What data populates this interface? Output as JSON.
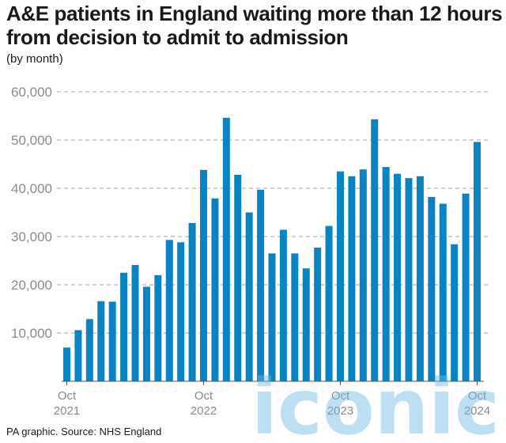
{
  "title": "A&E patients in England waiting more than 12 hours from decision to admit to admission",
  "subtitle": "(by month)",
  "source": "PA graphic. Source: NHS England",
  "watermark": "iconic",
  "colors": {
    "bar": "#0a83c2",
    "grid": "#a0a0a0",
    "axis": "#555555",
    "tick_text": "#8a8a8a"
  },
  "chart_data": {
    "type": "bar",
    "title": "A&E patients in England waiting more than 12 hours from decision to admit to admission",
    "subtitle": "(by month)",
    "xlabel": "",
    "ylabel": "",
    "ylim": [
      0,
      60000
    ],
    "yticks": [
      10000,
      20000,
      30000,
      40000,
      50000,
      60000
    ],
    "ytick_labels": [
      "10,000",
      "20,000",
      "30,000",
      "40,000",
      "50,000",
      "60,000"
    ],
    "grid": "horizontal dashed",
    "xtick_labels": [
      {
        "index": 0,
        "lines": [
          "Oct",
          "2021"
        ]
      },
      {
        "index": 12,
        "lines": [
          "Oct",
          "2022"
        ]
      },
      {
        "index": 24,
        "lines": [
          "Oct",
          "2023"
        ]
      },
      {
        "index": 36,
        "lines": [
          "Oct",
          "2024"
        ]
      }
    ],
    "categories": [
      "Oct 2021",
      "Nov 2021",
      "Dec 2021",
      "Jan 2022",
      "Feb 2022",
      "Mar 2022",
      "Apr 2022",
      "May 2022",
      "Jun 2022",
      "Jul 2022",
      "Aug 2022",
      "Sep 2022",
      "Oct 2022",
      "Nov 2022",
      "Dec 2022",
      "Jan 2023",
      "Feb 2023",
      "Mar 2023",
      "Apr 2023",
      "May 2023",
      "Jun 2023",
      "Jul 2023",
      "Aug 2023",
      "Sep 2023",
      "Oct 2023",
      "Nov 2023",
      "Dec 2023",
      "Jan 2024",
      "Feb 2024",
      "Mar 2024",
      "Apr 2024",
      "May 2024",
      "Jun 2024",
      "Jul 2024",
      "Aug 2024",
      "Sep 2024",
      "Oct 2024"
    ],
    "values": [
      7000,
      10600,
      12900,
      16600,
      16500,
      22500,
      24100,
      19600,
      22000,
      29300,
      28800,
      32800,
      43800,
      37900,
      54600,
      42800,
      35000,
      39700,
      26500,
      31400,
      26500,
      23400,
      27700,
      32200,
      43500,
      42500,
      43900,
      54300,
      44400,
      43000,
      42100,
      42500,
      38200,
      36800,
      28400,
      38900,
      49600
    ]
  }
}
